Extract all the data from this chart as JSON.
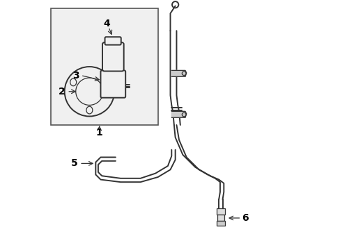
{
  "bg_color": "#ffffff",
  "line_color": "#333333",
  "label_color": "#000000",
  "font_size_label": 10,
  "lw_main": 1.4,
  "lw_thin": 0.9
}
